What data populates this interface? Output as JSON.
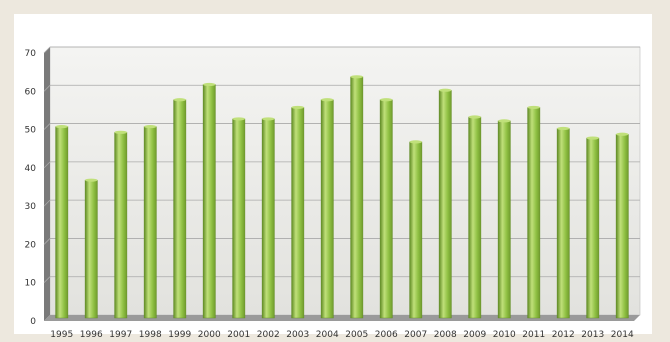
{
  "chart_data": {
    "type": "bar",
    "title": "",
    "xlabel": "",
    "ylabel": "",
    "categories": [
      "1995",
      "1996",
      "1997",
      "1998",
      "1999",
      "2000",
      "2001",
      "2002",
      "2003",
      "2004",
      "2005",
      "2006",
      "2007",
      "2008",
      "2009",
      "2010",
      "2011",
      "2012",
      "2013",
      "2014"
    ],
    "values": [
      50,
      36,
      48.5,
      50,
      57,
      61,
      52,
      52,
      55,
      57,
      63,
      57,
      46,
      59.5,
      52.5,
      51.5,
      55,
      49.5,
      47,
      48
    ],
    "ylim": [
      0,
      70
    ],
    "yticks": [
      0,
      10,
      20,
      30,
      40,
      50,
      60,
      70
    ],
    "grid": true,
    "legend": "none",
    "style": "3d",
    "colors": {
      "bar": "#8fc043",
      "bar_dark": "#5e8a22",
      "bar_light": "#c0e07a",
      "plot_background": "#ececea",
      "floor": "#9a9a9a",
      "wall_side": "#7a7a7a",
      "gridline": "#a9a9a9"
    }
  }
}
